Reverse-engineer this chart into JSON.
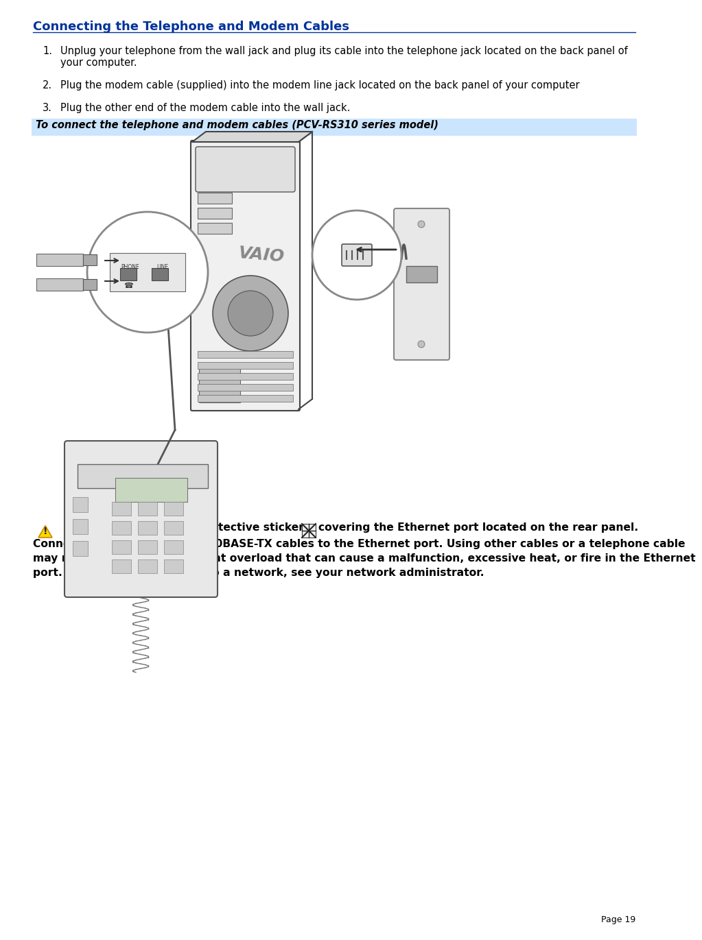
{
  "title": "Connecting the Telephone and Modem Cables",
  "title_color": "#003399",
  "background_color": "#ffffff",
  "step1": "Unplug your telephone from the wall jack and plug its cable into the telephone jack located on the back panel of\nyour computer.",
  "step2": "Plug the modem cable (supplied) into the modem line jack located on the back panel of your computer",
  "step3": "Plug the other end of the modem cable into the wall jack.",
  "callout_label": "To connect the telephone and modem cables (PCV-RS310 series model)",
  "callout_bg": "#cce5ff",
  "warning_text1": "      Your computer has a protective sticker      covering the Ethernet port located on the rear panel.",
  "warning_text2": "Connect only 10BASE-T and 100BASE-TX cables to the Ethernet port. Using other cables or a telephone cable\nmay result in an electric current overload that can cause a malfunction, excessive heat, or fire in the Ethernet\nport. For help on connecting to a network, see your network administrator.",
  "page_number": "Page 19",
  "body_font_size": 10.5,
  "title_font_size": 13.0,
  "callout_font_size": 10.5,
  "warning_font_size": 11.2,
  "lm": 38,
  "rm": 916
}
